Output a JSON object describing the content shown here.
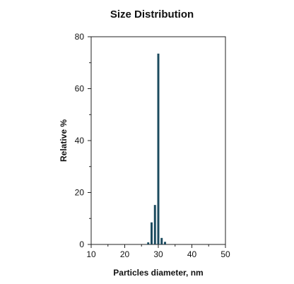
{
  "chart_data": {
    "type": "bar",
    "title": "Size Distribution",
    "xlabel": "Particles diameter, nm",
    "ylabel": "Relative %",
    "xlim": [
      10,
      50
    ],
    "ylim": [
      0,
      80
    ],
    "xticks": [
      10,
      20,
      30,
      40,
      50
    ],
    "yticks": [
      0,
      20,
      40,
      60,
      80
    ],
    "grid": false,
    "bar_color": "#1b4a5e",
    "x": [
      27,
      28,
      29,
      30,
      31,
      32
    ],
    "values": [
      0.8,
      8.5,
      15.2,
      73.5,
      2.5,
      1.0
    ]
  }
}
